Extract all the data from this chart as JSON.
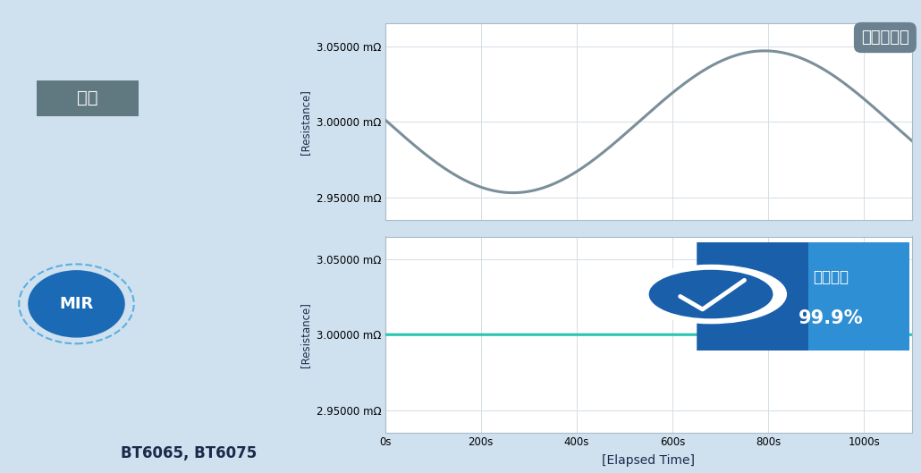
{
  "background_color": "#cfe0ef",
  "chart_bg": "#ffffff",
  "top_chart": {
    "title": "干扰影响大",
    "title_bg": "#6b8190",
    "title_color": "#ffffff",
    "ylabel": "[Resistance]",
    "yticks": [
      "3.05000 mΩ",
      "3.00000 mΩ",
      "2.95000 mΩ"
    ],
    "yvalues": [
      3.05,
      3.0,
      2.95
    ],
    "ylim": [
      2.935,
      3.065
    ],
    "line_color": "#7a8f9a",
    "line_width": 2.2,
    "sine_amplitude": 0.047,
    "sine_period": 1050,
    "sine_phase_shift": 530
  },
  "bottom_chart": {
    "ylabel": "[Resistance]",
    "yticks": [
      "3.05000 mΩ",
      "3.00000 mΩ",
      "2.95000 mΩ"
    ],
    "yvalues": [
      3.05,
      3.0,
      2.95
    ],
    "ylim": [
      2.935,
      3.065
    ],
    "line_color": "#2ac4b0",
    "line_value": 3.0,
    "line_width": 2.2,
    "badge_text1": "波动控制",
    "badge_text2": "99.9%",
    "badge_color1": "#1a5faa",
    "badge_color2": "#2e8fd4",
    "badge_circle_color": "#1a5faa"
  },
  "xlabel": "[Elapsed Time]",
  "xticks": [
    0,
    200,
    400,
    600,
    800,
    1000
  ],
  "xlim": [
    0,
    1100
  ],
  "grid_color": "#d4dde5",
  "left_label_top": "通常",
  "left_label_top_bg": "#607880",
  "left_label_mir": "MIR",
  "mir_bg": "#1a6ab5",
  "bottom_label": "BT6065, BT6075",
  "label_color": "#1a2a4a",
  "tick_fontsize": 8.5,
  "ylabel_fontsize": 8.5,
  "xlabel_fontsize": 10
}
